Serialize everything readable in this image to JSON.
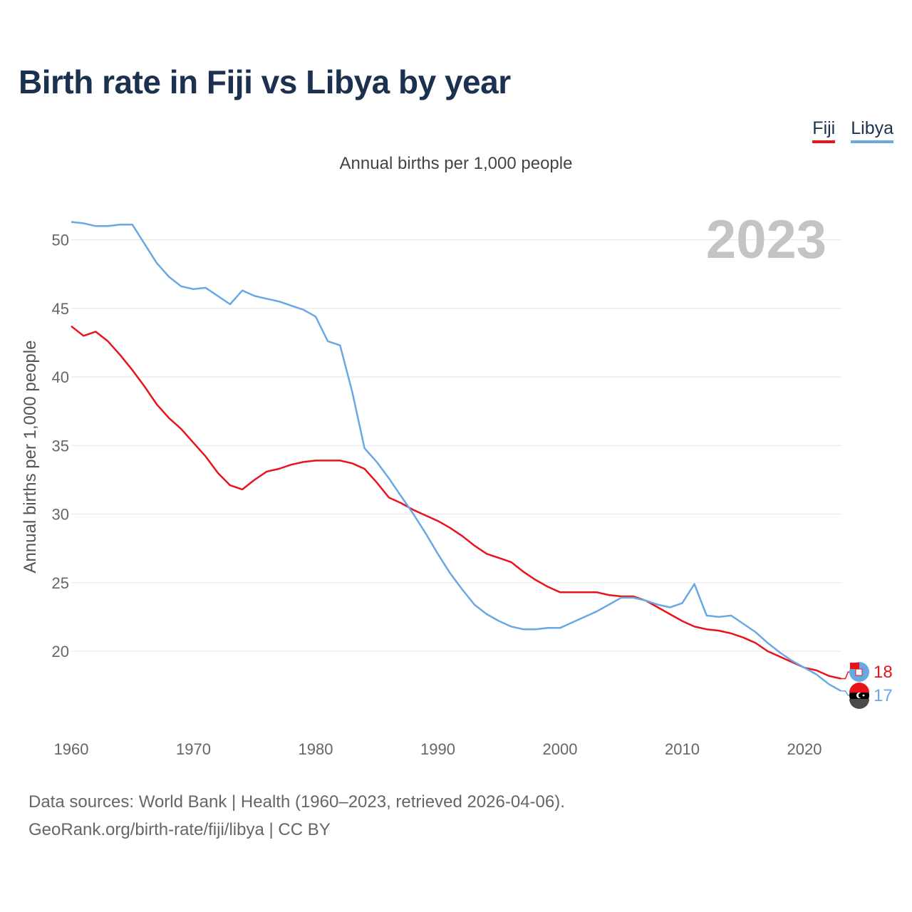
{
  "title": "Birth rate in Fiji vs Libya by year",
  "subtitle": "Annual births per 1,000 people",
  "legend": [
    {
      "name": "Fiji",
      "color": "#e8141c"
    },
    {
      "name": "Libya",
      "color": "#6aa8e4"
    }
  ],
  "footer": {
    "line1": "Data sources: World Bank | Health (1960–2023, retrieved 2026-04-06).",
    "line2": "GeoRank.org/birth-rate/fiji/libya | CC BY"
  },
  "chart_data": {
    "type": "line",
    "title": "Birth rate in Fiji vs Libya by year",
    "ylabel": "Annual births per 1,000 people",
    "xlabel": "",
    "year_label": "2023",
    "xlim": [
      1960,
      2023
    ],
    "ylim": [
      15,
      52
    ],
    "x_ticks": [
      1960,
      1970,
      1980,
      1990,
      2000,
      2010,
      2020
    ],
    "y_ticks": [
      20,
      25,
      30,
      35,
      40,
      45,
      50
    ],
    "grid": true,
    "legend_position": "top-right",
    "x": [
      1960,
      1961,
      1962,
      1963,
      1964,
      1965,
      1966,
      1967,
      1968,
      1969,
      1970,
      1971,
      1972,
      1973,
      1974,
      1975,
      1976,
      1977,
      1978,
      1979,
      1980,
      1981,
      1982,
      1983,
      1984,
      1985,
      1986,
      1987,
      1988,
      1989,
      1990,
      1991,
      1992,
      1993,
      1994,
      1995,
      1996,
      1997,
      1998,
      1999,
      2000,
      2001,
      2002,
      2003,
      2004,
      2005,
      2006,
      2007,
      2008,
      2009,
      2010,
      2011,
      2012,
      2013,
      2014,
      2015,
      2016,
      2017,
      2018,
      2019,
      2020,
      2021,
      2022,
      2023
    ],
    "series": [
      {
        "name": "Fiji",
        "color": "#e8141c",
        "end_label": "18",
        "values": [
          43.7,
          43.0,
          43.3,
          42.6,
          41.6,
          40.5,
          39.3,
          38.0,
          37.0,
          36.2,
          35.2,
          34.2,
          33.0,
          32.1,
          31.8,
          32.5,
          33.1,
          33.3,
          33.6,
          33.8,
          33.9,
          33.9,
          33.9,
          33.7,
          33.3,
          32.3,
          31.2,
          30.8,
          30.3,
          29.9,
          29.5,
          29.0,
          28.4,
          27.7,
          27.1,
          26.8,
          26.5,
          25.8,
          25.2,
          24.7,
          24.3,
          24.3,
          24.3,
          24.3,
          24.1,
          24.0,
          24.0,
          23.7,
          23.2,
          22.7,
          22.2,
          21.8,
          21.6,
          21.5,
          21.3,
          21.0,
          20.6,
          20.0,
          19.6,
          19.2,
          18.8,
          18.6,
          18.2,
          18.0
        ]
      },
      {
        "name": "Libya",
        "color": "#6aa8e4",
        "end_label": "17",
        "values": [
          51.3,
          51.2,
          51.0,
          51.0,
          51.1,
          51.1,
          49.7,
          48.3,
          47.3,
          46.6,
          46.4,
          46.5,
          45.9,
          45.3,
          46.3,
          45.9,
          45.7,
          45.5,
          45.2,
          44.9,
          44.4,
          42.6,
          42.3,
          38.9,
          34.8,
          33.8,
          32.6,
          31.3,
          30.0,
          28.6,
          27.1,
          25.7,
          24.5,
          23.4,
          22.7,
          22.2,
          21.8,
          21.6,
          21.6,
          21.7,
          21.7,
          22.1,
          22.5,
          22.9,
          23.4,
          23.9,
          23.9,
          23.7,
          23.4,
          23.2,
          23.5,
          24.9,
          22.6,
          22.5,
          22.6,
          22.0,
          21.4,
          20.6,
          19.9,
          19.3,
          18.8,
          18.3,
          17.6,
          17.1
        ]
      }
    ]
  }
}
